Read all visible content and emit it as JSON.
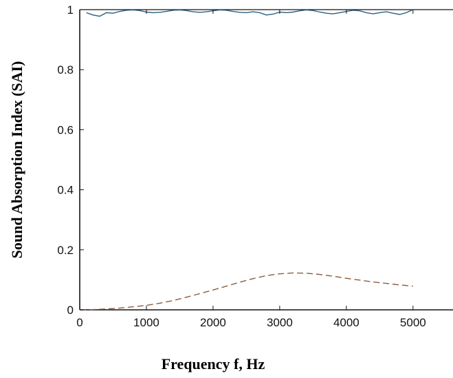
{
  "chart_data": {
    "type": "line",
    "title": "",
    "xlabel": "Frequency f, Hz",
    "ylabel": "Sound Absorption Index (SAI)",
    "xlim": [
      0,
      5600
    ],
    "ylim": [
      0,
      1
    ],
    "x_ticks": [
      0,
      1000,
      2000,
      3000,
      4000,
      5000
    ],
    "y_ticks": [
      0,
      0.2,
      0.4,
      0.6,
      0.8,
      1
    ],
    "x_tick_labels": [
      "0",
      "1000",
      "2000",
      "3000",
      "4000",
      "5000"
    ],
    "y_tick_labels": [
      "0",
      "0.2",
      "0.4",
      "0.6",
      "0.8",
      "1"
    ],
    "grid": false,
    "series": [
      {
        "style": "solid",
        "color": "#2b5d7c",
        "x": [
          100,
          200,
          300,
          400,
          500,
          600,
          700,
          800,
          900,
          1000,
          1100,
          1200,
          1300,
          1400,
          1500,
          1600,
          1700,
          1800,
          1900,
          2000,
          2100,
          2200,
          2300,
          2400,
          2500,
          2600,
          2700,
          2800,
          2900,
          3000,
          3100,
          3200,
          3300,
          3400,
          3500,
          3600,
          3700,
          3800,
          3900,
          4000,
          4100,
          4200,
          4300,
          4400,
          4500,
          4600,
          4700,
          4800,
          4900,
          5000
        ],
        "y": [
          0.99,
          0.982,
          0.978,
          0.99,
          0.988,
          0.994,
          0.998,
          0.999,
          0.997,
          0.992,
          0.99,
          0.991,
          0.994,
          0.998,
          0.999,
          0.997,
          0.993,
          0.991,
          0.993,
          0.996,
          0.999,
          0.998,
          0.994,
          0.991,
          0.99,
          0.993,
          0.99,
          0.982,
          0.985,
          0.992,
          0.99,
          0.992,
          0.996,
          0.999,
          0.997,
          0.992,
          0.988,
          0.986,
          0.99,
          0.994,
          0.998,
          0.996,
          0.99,
          0.986,
          0.99,
          0.993,
          0.988,
          0.984,
          0.99,
          1.0
        ]
      },
      {
        "style": "dashed",
        "color": "#8b5a3c",
        "x": [
          0,
          200,
          400,
          600,
          800,
          1000,
          1200,
          1400,
          1600,
          1800,
          2000,
          2200,
          2400,
          2600,
          2800,
          3000,
          3200,
          3400,
          3600,
          3800,
          4000,
          4200,
          4400,
          4600,
          4800,
          5000
        ],
        "y": [
          0.0,
          0.001,
          0.003,
          0.006,
          0.01,
          0.015,
          0.022,
          0.031,
          0.042,
          0.054,
          0.066,
          0.079,
          0.092,
          0.104,
          0.114,
          0.12,
          0.123,
          0.122,
          0.118,
          0.112,
          0.105,
          0.099,
          0.093,
          0.088,
          0.083,
          0.079
        ]
      }
    ]
  }
}
